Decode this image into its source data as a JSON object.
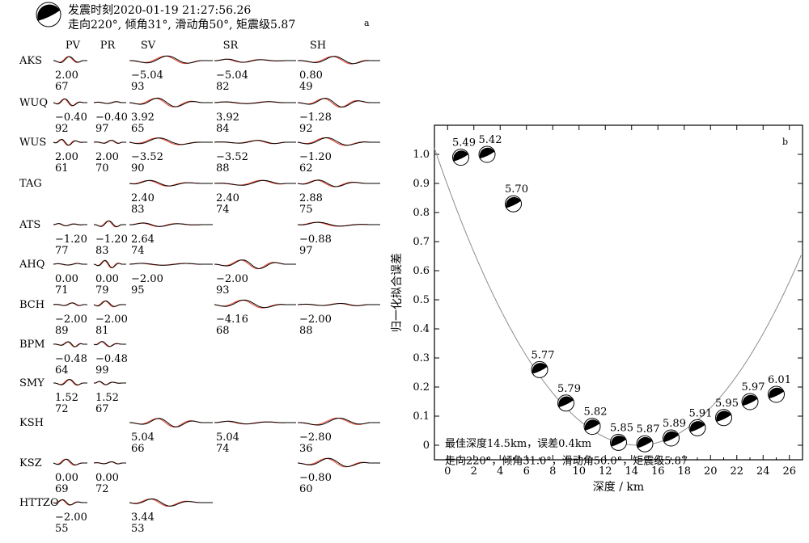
{
  "panel_a": {
    "header": {
      "line1": "发震时刻2020-01-19 21:27:56.26",
      "line2": "走向220°, 倾角31°, 滑动角50°, 矩震级5.87"
    },
    "panel_label": "a",
    "columns": [
      "PV",
      "PR",
      "SV",
      "SR",
      "SH"
    ],
    "stations": [
      {
        "name": "AKS",
        "cells": {
          "PV": [
            "2.00",
            "67"
          ],
          "SV": [
            "−5.04",
            "93"
          ],
          "SR": [
            "−5.04",
            "82"
          ],
          "SH": [
            "0.80",
            "49"
          ]
        }
      },
      {
        "name": "WUQ",
        "cells": {
          "PV": [
            "−0.40",
            "92"
          ],
          "PR": [
            "−0.40",
            "97"
          ],
          "SV": [
            "3.92",
            "65"
          ],
          "SR": [
            "3.92",
            "84"
          ],
          "SH": [
            "−1.28",
            "92"
          ]
        }
      },
      {
        "name": "WUS",
        "cells": {
          "PV": [
            "2.00",
            "61"
          ],
          "PR": [
            "2.00",
            "70"
          ],
          "SV": [
            "−3.52",
            "90"
          ],
          "SR": [
            "−3.52",
            "88"
          ],
          "SH": [
            "−1.20",
            "62"
          ]
        }
      },
      {
        "name": "TAG",
        "cells": {
          "SV": [
            "2.40",
            "83"
          ],
          "SR": [
            "2.40",
            "74"
          ],
          "SH": [
            "2.88",
            "75"
          ]
        }
      },
      {
        "name": "ATS",
        "cells": {
          "PV": [
            "−1.20",
            "77"
          ],
          "PR": [
            "−1.20",
            "83"
          ],
          "SV": [
            "2.64",
            "74"
          ],
          "SH": [
            "−0.88",
            "97"
          ]
        }
      },
      {
        "name": "AHQ",
        "cells": {
          "PV": [
            "0.00",
            "71"
          ],
          "PR": [
            "0.00",
            "79"
          ],
          "SV": [
            "−2.00",
            "95"
          ],
          "SR": [
            "−2.00",
            "93"
          ]
        }
      },
      {
        "name": "BCH",
        "cells": {
          "PV": [
            "−2.00",
            "89"
          ],
          "PR": [
            "−2.00",
            "81"
          ],
          "SR": [
            "−4.16",
            "68"
          ],
          "SH": [
            "−2.00",
            "88"
          ]
        }
      },
      {
        "name": "BPM",
        "cells": {
          "PV": [
            "−0.48",
            "64"
          ],
          "PR": [
            "−0.48",
            "99"
          ]
        }
      },
      {
        "name": "SMY",
        "cells": {
          "PV": [
            "1.52",
            "72"
          ],
          "PR": [
            "1.52",
            "67"
          ]
        }
      },
      {
        "name": "KSH",
        "cells": {
          "SV": [
            "5.04",
            "66"
          ],
          "SR": [
            "5.04",
            "74"
          ],
          "SH": [
            "−2.80",
            "36"
          ]
        }
      },
      {
        "name": "KSZ",
        "cells": {
          "PV": [
            "0.00",
            "69"
          ],
          "PR": [
            "0.00",
            "72"
          ],
          "SH": [
            "−0.80",
            "60"
          ]
        }
      },
      {
        "name": "HTTZO",
        "cells": {
          "PV": [
            "−2.00",
            "55"
          ],
          "SV": [
            "3.44",
            "53"
          ]
        }
      }
    ],
    "colors": {
      "observed": "#000000",
      "synthetic": "#e8402a"
    }
  },
  "chart_data": {
    "type": "scatter",
    "panel_label": "b",
    "xlabel": "深度 / km",
    "ylabel": "归一化拟合误差",
    "xlim": [
      -1,
      27
    ],
    "ylim": [
      -0.05,
      1.1
    ],
    "xticks": [
      0,
      2,
      4,
      6,
      8,
      10,
      12,
      14,
      16,
      18,
      20,
      22,
      24,
      26
    ],
    "yticks": [
      0,
      0.1,
      0.2,
      0.3,
      0.4,
      0.5,
      0.6,
      0.7,
      0.8,
      0.9,
      1.0
    ],
    "ytick_labels": [
      "0",
      "0.1",
      "0.2",
      "0.3",
      "0.4",
      "0.5",
      "0.6",
      "0.7",
      "0.8",
      "0.9",
      "1.0"
    ],
    "points": [
      {
        "x": 1,
        "y": 0.99,
        "label": "5.49"
      },
      {
        "x": 3,
        "y": 1.0,
        "label": "5.42"
      },
      {
        "x": 5,
        "y": 0.83,
        "label": "5.70"
      },
      {
        "x": 7,
        "y": 0.26,
        "label": "5.77"
      },
      {
        "x": 9,
        "y": 0.145,
        "label": "5.79"
      },
      {
        "x": 11,
        "y": 0.065,
        "label": "5.82"
      },
      {
        "x": 13,
        "y": 0.01,
        "label": "5.85"
      },
      {
        "x": 15,
        "y": 0.005,
        "label": "5.87"
      },
      {
        "x": 17,
        "y": 0.025,
        "label": "5.89"
      },
      {
        "x": 19,
        "y": 0.06,
        "label": "5.91"
      },
      {
        "x": 21,
        "y": 0.095,
        "label": "5.95"
      },
      {
        "x": 23,
        "y": 0.15,
        "label": "5.97"
      },
      {
        "x": 25,
        "y": 0.175,
        "label": "6.01"
      }
    ],
    "fit_curve": {
      "vertex_x": 14.5,
      "vertex_y": 0.0,
      "coef": 0.00425,
      "color": "#8c8c8c"
    },
    "annotation": {
      "line1": "最佳深度14.5km，误差0.4km",
      "line2": "走向220°，倾角31.0°，滑动角50.0°，矩震级5.87"
    }
  }
}
